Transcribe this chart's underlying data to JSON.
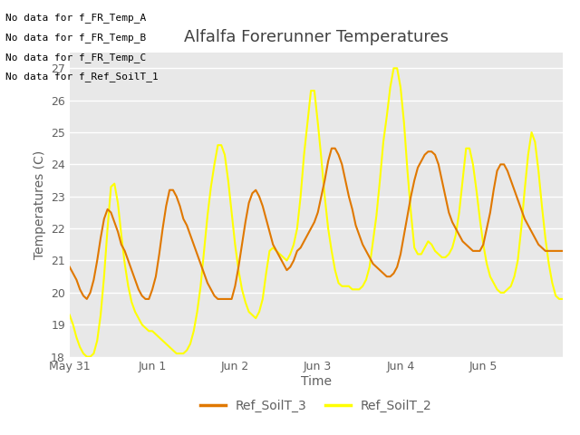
{
  "title": "Alfalfa Forerunner Temperatures",
  "xlabel": "Time",
  "ylabel": "Temperatures (C)",
  "ylim": [
    18.0,
    27.5
  ],
  "yticks": [
    18.0,
    19.0,
    20.0,
    21.0,
    22.0,
    23.0,
    24.0,
    25.0,
    26.0,
    27.0
  ],
  "fig_bg_color": "#ffffff",
  "plot_bg_color": "#e8e8e8",
  "grid_color": "#ffffff",
  "no_data_lines": [
    "No data for f_FR_Temp_A",
    "No data for f_FR_Temp_B",
    "No data for f_FR_Temp_C",
    "No data for f_Ref_SoilT_1"
  ],
  "legend_entries": [
    "Ref_SoilT_3",
    "Ref_SoilT_2"
  ],
  "title_color": "#404040",
  "axis_label_color": "#606060",
  "tick_color": "#606060",
  "ref_soil_t3_color": "#e07800",
  "ref_soil_t2_color": "#ffff00",
  "x_tick_labels": [
    "May 31",
    "Jun 1",
    "Jun 2",
    "Jun 3",
    "Jun 4",
    "Jun 5"
  ],
  "x_tick_positions": [
    0,
    24,
    48,
    72,
    96,
    120
  ],
  "ref_soil_t3": [
    20.8,
    20.6,
    20.4,
    20.1,
    19.9,
    19.8,
    20.0,
    20.4,
    21.0,
    21.7,
    22.3,
    22.6,
    22.5,
    22.2,
    21.9,
    21.5,
    21.3,
    21.0,
    20.7,
    20.4,
    20.1,
    19.9,
    19.8,
    19.8,
    20.1,
    20.5,
    21.2,
    22.0,
    22.7,
    23.2,
    23.2,
    23.0,
    22.7,
    22.3,
    22.1,
    21.8,
    21.5,
    21.2,
    20.9,
    20.6,
    20.3,
    20.1,
    19.9,
    19.8,
    19.8,
    19.8,
    19.8,
    19.8,
    20.2,
    20.8,
    21.5,
    22.2,
    22.8,
    23.1,
    23.2,
    23.0,
    22.7,
    22.3,
    21.9,
    21.5,
    21.3,
    21.1,
    20.9,
    20.7,
    20.8,
    21.0,
    21.3,
    21.4,
    21.6,
    21.8,
    22.0,
    22.2,
    22.5,
    23.0,
    23.5,
    24.1,
    24.5,
    24.5,
    24.3,
    24.0,
    23.5,
    23.0,
    22.6,
    22.1,
    21.8,
    21.5,
    21.3,
    21.1,
    20.9,
    20.8,
    20.7,
    20.6,
    20.5,
    20.5,
    20.6,
    20.8,
    21.2,
    21.8,
    22.4,
    23.0,
    23.5,
    23.9,
    24.1,
    24.3,
    24.4,
    24.4,
    24.3,
    24.0,
    23.5,
    23.0,
    22.5,
    22.2,
    22.0,
    21.8,
    21.6,
    21.5,
    21.4,
    21.3,
    21.3,
    21.3,
    21.5,
    22.0,
    22.5,
    23.2,
    23.8,
    24.0,
    24.0,
    23.8,
    23.5,
    23.2,
    22.9,
    22.6,
    22.3,
    22.1,
    21.9,
    21.7,
    21.5,
    21.4,
    21.3,
    21.3,
    21.3,
    21.3,
    21.3,
    21.3
  ],
  "ref_soil_t2": [
    19.3,
    19.0,
    18.6,
    18.3,
    18.1,
    18.0,
    18.0,
    18.1,
    18.5,
    19.3,
    20.5,
    22.0,
    23.3,
    23.4,
    22.8,
    21.8,
    20.9,
    20.2,
    19.7,
    19.4,
    19.2,
    19.0,
    18.9,
    18.8,
    18.8,
    18.7,
    18.6,
    18.5,
    18.4,
    18.3,
    18.2,
    18.1,
    18.1,
    18.1,
    18.2,
    18.4,
    18.8,
    19.4,
    20.2,
    21.3,
    22.4,
    23.3,
    24.0,
    24.6,
    24.6,
    24.3,
    23.5,
    22.5,
    21.5,
    20.7,
    20.1,
    19.7,
    19.4,
    19.3,
    19.2,
    19.4,
    19.8,
    20.6,
    21.3,
    21.4,
    21.3,
    21.2,
    21.1,
    21.0,
    21.2,
    21.5,
    22.0,
    23.0,
    24.3,
    25.3,
    26.3,
    26.3,
    25.3,
    24.2,
    23.0,
    22.0,
    21.3,
    20.7,
    20.3,
    20.2,
    20.2,
    20.2,
    20.1,
    20.1,
    20.1,
    20.2,
    20.4,
    20.8,
    21.6,
    22.4,
    23.5,
    24.7,
    25.5,
    26.4,
    27.0,
    27.0,
    26.4,
    25.3,
    23.8,
    22.5,
    21.4,
    21.2,
    21.2,
    21.4,
    21.6,
    21.5,
    21.3,
    21.2,
    21.1,
    21.1,
    21.2,
    21.4,
    21.8,
    22.5,
    23.5,
    24.5,
    24.5,
    24.0,
    23.2,
    22.3,
    21.5,
    20.9,
    20.5,
    20.3,
    20.1,
    20.0,
    20.0,
    20.1,
    20.2,
    20.5,
    21.0,
    22.0,
    23.2,
    24.3,
    25.0,
    24.7,
    23.8,
    22.7,
    21.7,
    20.9,
    20.3,
    19.9,
    19.8,
    19.8
  ]
}
